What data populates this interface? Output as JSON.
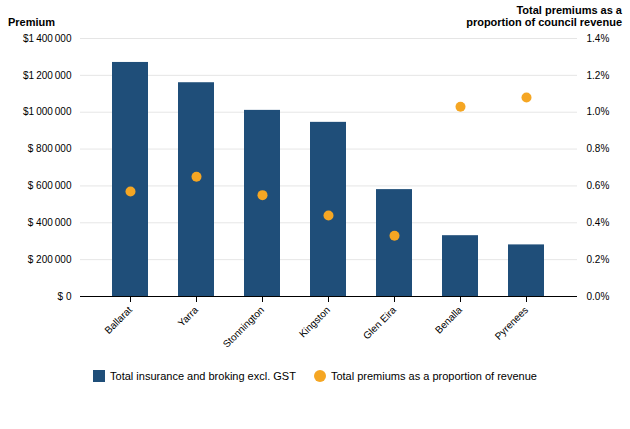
{
  "chart_data": {
    "type": "bar",
    "categories": [
      "Ballarat",
      "Yarra",
      "Stonnington",
      "Kingston",
      "Glen Eira",
      "Benalla",
      "Pyrenees"
    ],
    "series": [
      {
        "name": "Total insurance and broking excl. GST",
        "type": "bar",
        "color": "#1F4E79",
        "values": [
          1270000,
          1160000,
          1010000,
          945000,
          580000,
          330000,
          280000
        ]
      },
      {
        "name": "Total premiums as a proportion of revenue",
        "type": "scatter",
        "marker": "circle",
        "color": "#F5A623",
        "axis": "y2",
        "values": [
          0.0057,
          0.0065,
          0.0055,
          0.0044,
          0.0033,
          0.0103,
          0.0108
        ]
      }
    ],
    "ylabel": "Premium",
    "y2label": "Total premiums as a\nproportion of council revenue",
    "ylim": [
      0,
      1400000
    ],
    "yticks": [
      {
        "value": 0,
        "label": "$ 0"
      },
      {
        "value": 200000,
        "label": "$ 200 000"
      },
      {
        "value": 400000,
        "label": "$ 400 000"
      },
      {
        "value": 600000,
        "label": "$ 600 000"
      },
      {
        "value": 800000,
        "label": "$ 800 000"
      },
      {
        "value": 1000000,
        "label": "$1 000 000"
      },
      {
        "value": 1200000,
        "label": "$1 200 000"
      },
      {
        "value": 1400000,
        "label": "$1 400 000"
      }
    ],
    "y2lim": [
      0,
      0.014
    ],
    "y2ticks": [
      {
        "value": 0.0,
        "label": "0.0%"
      },
      {
        "value": 0.002,
        "label": "0.2%"
      },
      {
        "value": 0.004,
        "label": "0.4%"
      },
      {
        "value": 0.006,
        "label": "0.6%"
      },
      {
        "value": 0.008,
        "label": "0.8%"
      },
      {
        "value": 0.01,
        "label": "1.0%"
      },
      {
        "value": 0.012,
        "label": "1.2%"
      },
      {
        "value": 0.014,
        "label": "1.4%"
      }
    ],
    "grid": true,
    "legend": "bottom"
  }
}
